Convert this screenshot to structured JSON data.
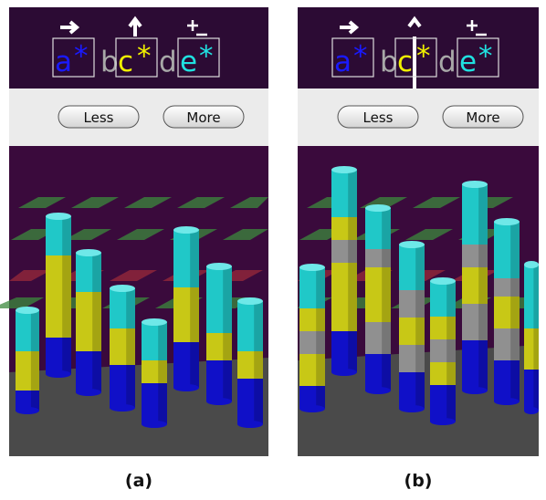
{
  "panels": [
    {
      "query": {
        "tokens": [
          {
            "letter": "a",
            "mark": "*"
          },
          {
            "letter": "b"
          },
          {
            "letter": "c",
            "mark": "*"
          },
          {
            "letter": "d"
          },
          {
            "letter": "e",
            "mark": "*"
          }
        ]
      },
      "buttons": [
        "Less",
        "More"
      ],
      "caption": "(a)"
    },
    {
      "query": {
        "tokens": [
          {
            "letter": "a",
            "mark": "*"
          },
          {
            "letter": "b"
          },
          {
            "letter": "c",
            "mark": "*"
          },
          {
            "letter": "d"
          },
          {
            "letter": "e",
            "mark": "*"
          }
        ]
      },
      "buttons": [
        "Less",
        "More"
      ],
      "caption": "(b)"
    }
  ]
}
